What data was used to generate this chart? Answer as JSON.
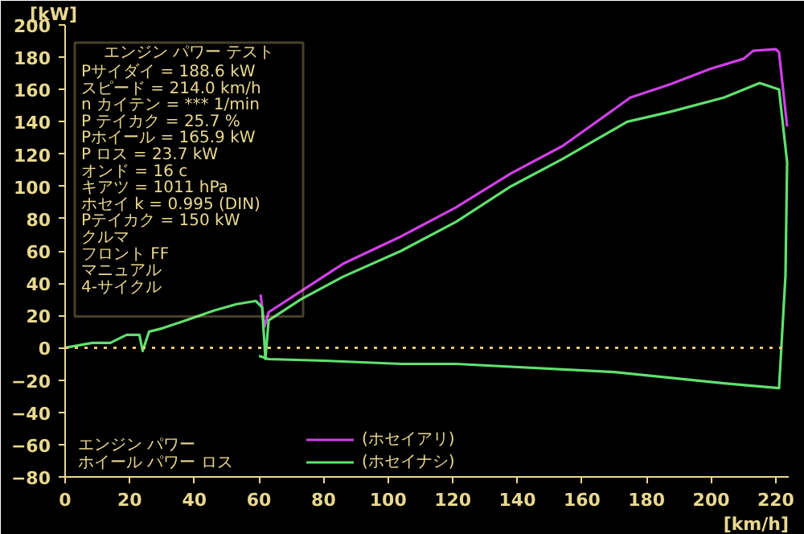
{
  "chart_data": {
    "type": "line",
    "title": "エンジン パワー テスト",
    "xlabel": "[km/h]",
    "ylabel": "[kW]",
    "xlim": [
      0,
      224
    ],
    "xticks": [
      0,
      20,
      40,
      60,
      80,
      100,
      120,
      140,
      160,
      180,
      200,
      220
    ],
    "ylim": [
      -80,
      200
    ],
    "yticks": [
      -80,
      -60,
      -40,
      -20,
      0,
      20,
      40,
      60,
      80,
      100,
      120,
      140,
      160,
      180,
      200
    ],
    "grid": false,
    "legend": "bottom",
    "line_style": "solid",
    "marker": "none",
    "series": [
      {
        "name": "(ホセイアリ)",
        "color": "#d040e8",
        "x": [
          60.5,
          61.7,
          63,
          73,
          86,
          104,
          121,
          138,
          154,
          175,
          187,
          200,
          210,
          213,
          220,
          221,
          223.5
        ],
        "values": [
          33,
          13,
          22,
          35,
          52,
          69,
          87,
          108,
          125,
          155,
          163,
          173,
          179,
          184,
          185,
          183,
          137
        ]
      },
      {
        "name": "(ホセイナシ)",
        "color": "#60e070",
        "x": [
          0,
          8.4,
          14,
          19,
          23,
          24,
          26,
          30,
          36,
          46,
          53,
          59,
          61,
          62,
          62.5,
          63,
          73,
          86,
          104,
          121,
          138,
          154,
          174,
          187,
          204,
          215,
          221,
          223.5,
          223,
          221,
          204,
          170,
          121,
          104,
          80,
          63,
          60
        ],
        "values": [
          0,
          3,
          3,
          8,
          8,
          -2,
          10,
          12,
          16,
          23,
          27,
          29,
          25,
          -7,
          5,
          17,
          30,
          44,
          60,
          78,
          100,
          117,
          140,
          146,
          155,
          164,
          160,
          115,
          45,
          -25,
          -22,
          -15,
          -10,
          -10,
          -8,
          -7,
          -5
        ]
      }
    ],
    "ref_lines": [
      {
        "axis": "y",
        "value": 0,
        "color": "#e8c870",
        "line_style": "dotted"
      }
    ],
    "annotations": [
      "Pサイダイ = 188.6 kW",
      "スピード = 214.0 km/h",
      "n カイテン = *** 1/min",
      "P テイカク = 25.7 %",
      "Pホイール = 165.9 kW",
      "P ロス = 23.7 kW",
      "オンド = 16 c",
      "キアツ = 1011 hPa",
      "ホセイ k = 0.995 (DIN)",
      "Pテイカク = 150 kW",
      "クルマ",
      "フロント FF",
      "マニュアル",
      "4-サイクル",
      "エンジン パワー",
      "ホイール パワー ロス"
    ]
  }
}
